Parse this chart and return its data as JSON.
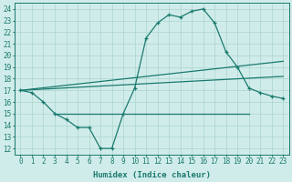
{
  "line1_x": [
    0,
    1,
    2,
    3,
    4,
    5,
    6,
    7,
    8,
    9,
    10,
    11,
    12,
    13,
    14,
    15,
    16,
    17,
    18,
    19,
    20,
    21,
    22,
    23
  ],
  "line1_y": [
    17.0,
    16.8,
    16.0,
    15.0,
    14.5,
    13.8,
    13.8,
    12.0,
    12.0,
    15.0,
    17.2,
    21.5,
    22.8,
    23.5,
    23.3,
    23.8,
    24.0,
    22.8,
    20.3,
    19.0,
    17.2,
    16.8,
    16.5,
    16.3
  ],
  "line2_x": [
    0,
    23
  ],
  "line2_y": [
    17.0,
    19.5
  ],
  "line3_x": [
    0,
    23
  ],
  "line3_y": [
    17.0,
    18.2
  ],
  "line4_x": [
    3,
    20
  ],
  "line4_y": [
    15.0,
    15.0
  ],
  "color": "#1a7a6e",
  "bg_color": "#d0ecea",
  "grid_color": "#b0d8d2",
  "xlabel": "Humidex (Indice chaleur)",
  "ylim": [
    11.5,
    24.5
  ],
  "xlim": [
    -0.5,
    23.5
  ],
  "yticks": [
    12,
    13,
    14,
    15,
    16,
    17,
    18,
    19,
    20,
    21,
    22,
    23,
    24
  ],
  "xticks": [
    0,
    1,
    2,
    3,
    4,
    5,
    6,
    7,
    8,
    9,
    10,
    11,
    12,
    13,
    14,
    15,
    16,
    17,
    18,
    19,
    20,
    21,
    22,
    23
  ]
}
